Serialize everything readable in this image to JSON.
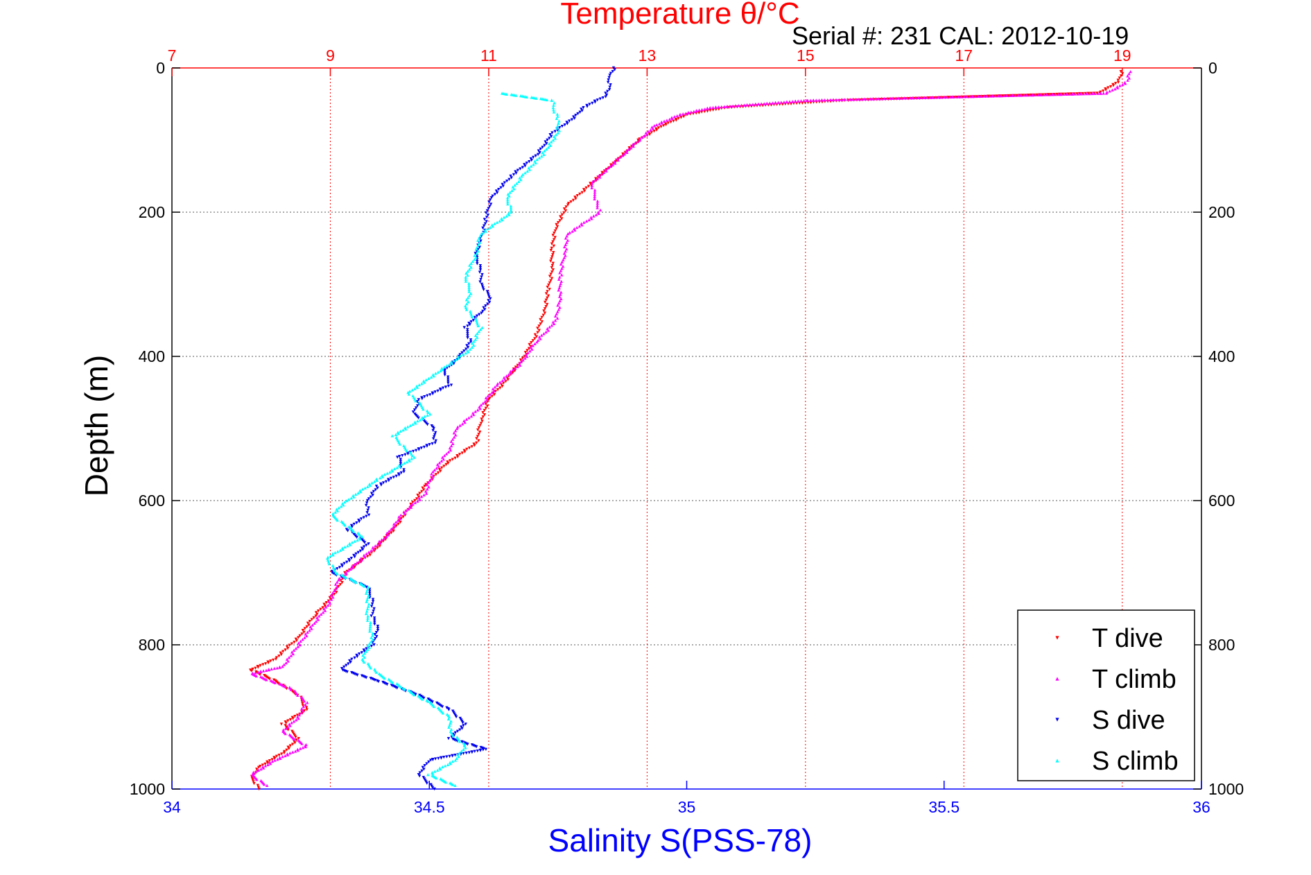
{
  "header": {
    "top_title": "Temperature θ/°C",
    "serial_cal": "Serial #: 231  CAL: 2012-10-19"
  },
  "colors": {
    "temperature_axis": "#ff0000",
    "salinity_axis": "#0000ff",
    "t_dive": "#ff0000",
    "t_climb": "#ff00ff",
    "s_dive": "#0000ee",
    "s_climb": "#00ffff"
  },
  "chart_data": {
    "type": "scatter",
    "ylabel": "Depth (m)",
    "xlabel_bottom": "Salinity S(PSS-78)",
    "xlabel_top": "Temperature θ/°C",
    "y_reversed": true,
    "ylim": [
      0,
      1000
    ],
    "y_ticks": [
      0,
      200,
      400,
      600,
      800,
      1000
    ],
    "y_tick_labels": [
      "0",
      "200",
      "400",
      "600",
      "800",
      "1000"
    ],
    "x_bottom_lim": [
      34,
      36
    ],
    "x_bottom_ticks": [
      34,
      34.5,
      35,
      35.5,
      36
    ],
    "x_bottom_tick_labels": [
      "34",
      "34.5",
      "35",
      "35.5",
      "36"
    ],
    "x_top_lim": [
      7,
      20
    ],
    "x_top_ticks": [
      7,
      9,
      11,
      13,
      15,
      17,
      19
    ],
    "x_top_tick_labels": [
      "7",
      "9",
      "11",
      "13",
      "15",
      "17",
      "19"
    ],
    "grid": true,
    "legend_position": "bottom-right",
    "series": [
      {
        "name": "T dive",
        "axis": "temperature",
        "marker": "triangle-down",
        "depth": [
          5,
          20,
          35,
          45,
          55,
          65,
          80,
          100,
          130,
          160,
          190,
          220,
          250,
          280,
          310,
          340,
          370,
          400,
          430,
          460,
          490,
          520,
          550,
          580,
          610,
          640,
          670,
          700,
          730,
          760,
          790,
          820,
          835,
          850,
          870,
          890,
          910,
          930,
          950,
          970,
          985,
          1000
        ],
        "values": [
          19.0,
          18.95,
          18.7,
          15.5,
          14.0,
          13.5,
          13.2,
          12.9,
          12.6,
          12.3,
          12.0,
          11.85,
          11.8,
          11.8,
          11.75,
          11.7,
          11.6,
          11.45,
          11.25,
          11.0,
          10.9,
          10.85,
          10.45,
          10.2,
          10.0,
          9.8,
          9.55,
          9.2,
          9.05,
          8.8,
          8.6,
          8.3,
          8.0,
          8.3,
          8.6,
          8.7,
          8.4,
          8.6,
          8.4,
          8.1,
          8.0,
          8.1
        ]
      },
      {
        "name": "T climb",
        "axis": "temperature",
        "marker": "triangle-up",
        "depth": [
          5,
          20,
          35,
          45,
          55,
          65,
          80,
          100,
          130,
          160,
          200,
          230,
          260,
          290,
          320,
          350,
          380,
          410,
          440,
          470,
          500,
          530,
          560,
          590,
          620,
          650,
          680,
          710,
          740,
          770,
          800,
          830,
          840,
          860,
          880,
          900,
          920,
          940,
          960,
          980,
          995
        ],
        "values": [
          19.1,
          19.05,
          18.8,
          15.0,
          13.8,
          13.4,
          13.1,
          12.9,
          12.6,
          12.3,
          12.4,
          12.0,
          11.95,
          11.9,
          11.9,
          11.85,
          11.6,
          11.4,
          11.1,
          10.9,
          10.6,
          10.5,
          10.3,
          10.2,
          9.9,
          9.7,
          9.4,
          9.1,
          9.0,
          8.8,
          8.6,
          8.4,
          8.0,
          8.5,
          8.7,
          8.6,
          8.4,
          8.7,
          8.3,
          8.0,
          8.2
        ]
      },
      {
        "name": "S dive",
        "axis": "salinity",
        "marker": "triangle-down",
        "depth": [
          0,
          10,
          20,
          30,
          40,
          55,
          70,
          90,
          120,
          150,
          180,
          210,
          240,
          260,
          280,
          300,
          320,
          340,
          360,
          380,
          400,
          420,
          440,
          460,
          480,
          500,
          520,
          540,
          560,
          580,
          600,
          620,
          640,
          660,
          680,
          700,
          720,
          740,
          760,
          780,
          800,
          820,
          835,
          850,
          870,
          890,
          910,
          930,
          945,
          960,
          980,
          1000
        ],
        "values": [
          34.86,
          34.85,
          34.85,
          34.85,
          34.84,
          34.8,
          34.78,
          34.74,
          34.71,
          34.66,
          34.62,
          34.61,
          34.6,
          34.59,
          34.6,
          34.6,
          34.62,
          34.6,
          34.57,
          34.58,
          34.56,
          34.53,
          34.54,
          34.48,
          34.47,
          34.51,
          34.51,
          34.44,
          34.45,
          34.4,
          34.38,
          34.38,
          34.34,
          34.38,
          34.35,
          34.31,
          34.38,
          34.39,
          34.39,
          34.4,
          34.39,
          34.35,
          34.33,
          34.4,
          34.48,
          34.54,
          34.57,
          34.54,
          34.61,
          34.5,
          34.48,
          34.51
        ]
      },
      {
        "name": "S climb",
        "axis": "salinity",
        "marker": "triangle-up",
        "depth": [
          35,
          45,
          55,
          70,
          90,
          120,
          150,
          180,
          200,
          230,
          260,
          290,
          310,
          330,
          360,
          390,
          420,
          450,
          480,
          510,
          540,
          570,
          600,
          620,
          650,
          680,
          700,
          720,
          740,
          760,
          790,
          820,
          840,
          860,
          880,
          900,
          920,
          940,
          960,
          980,
          995
        ],
        "values": [
          34.64,
          34.74,
          34.74,
          34.75,
          34.75,
          34.72,
          34.68,
          34.65,
          34.66,
          34.6,
          34.59,
          34.57,
          34.58,
          34.57,
          34.6,
          34.58,
          34.52,
          34.46,
          34.5,
          34.43,
          34.47,
          34.4,
          34.34,
          34.31,
          34.37,
          34.3,
          34.32,
          34.38,
          34.38,
          34.38,
          34.39,
          34.37,
          34.4,
          34.45,
          34.5,
          34.54,
          34.54,
          34.57,
          34.55,
          34.5,
          34.55
        ]
      }
    ]
  }
}
